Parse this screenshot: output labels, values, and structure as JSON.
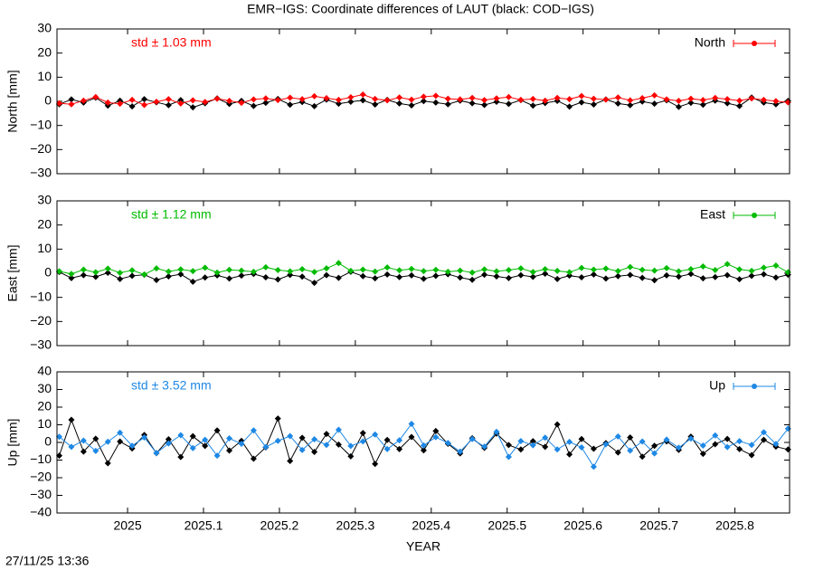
{
  "title": "EMR−IGS: Coordinate differences of LAUT (black: COD−IGS)",
  "footer": "27/11/25 13:36",
  "chart_data": [
    {
      "type": "line",
      "y_label": "North [mm]",
      "annotation": "std ± 1.03 mm",
      "xlim": [
        2024.907,
        2025.872
      ],
      "xticks": [
        2025,
        2025.1,
        2025.2,
        2025.3,
        2025.4,
        2025.5,
        2025.6,
        2025.7,
        2025.8
      ],
      "ylim": [
        -30,
        30
      ],
      "yticks": [
        {
          "value": -30,
          "label": "−30"
        },
        {
          "value": -20,
          "label": "−20"
        },
        {
          "value": -10,
          "label": "−10"
        },
        0,
        10,
        20,
        30
      ],
      "legend": "top-right",
      "x": [
        2024.91,
        2024.926,
        2024.942,
        2024.958,
        2024.974,
        2024.99,
        2025.006,
        2025.022,
        2025.038,
        2025.054,
        2025.07,
        2025.086,
        2025.102,
        2025.118,
        2025.134,
        2025.15,
        2025.166,
        2025.182,
        2025.198,
        2025.214,
        2025.23,
        2025.246,
        2025.262,
        2025.278,
        2025.294,
        2025.31,
        2025.326,
        2025.342,
        2025.358,
        2025.374,
        2025.39,
        2025.406,
        2025.422,
        2025.438,
        2025.454,
        2025.47,
        2025.486,
        2025.502,
        2025.518,
        2025.534,
        2025.55,
        2025.566,
        2025.582,
        2025.598,
        2025.614,
        2025.63,
        2025.646,
        2025.662,
        2025.678,
        2025.694,
        2025.71,
        2025.726,
        2025.742,
        2025.758,
        2025.774,
        2025.79,
        2025.806,
        2025.822,
        2025.838,
        2025.854,
        2025.87
      ],
      "series": [
        {
          "color": "#000000",
          "values": [
            -1.2,
            0.8,
            -0.5,
            1.5,
            -1.8,
            0.3,
            -2.1,
            0.9,
            -0.4,
            -1.6,
            0.5,
            -2.5,
            -0.8,
            1.2,
            -1.1,
            0.2,
            -1.9,
            -0.6,
            1.0,
            -1.4,
            -0.3,
            -2.0,
            0.7,
            -1.0,
            -0.2,
            0.4,
            -1.3,
            0.6,
            -0.9,
            -1.7,
            0.1,
            -0.5,
            -1.2,
            0.3,
            -0.8,
            -1.5,
            -0.2,
            -1.1,
            0.5,
            -1.8,
            -0.7,
            0.2,
            -2.2,
            -0.4,
            -1.3,
            0.8,
            -0.9,
            -1.6,
            -0.1,
            -1.0,
            0.4,
            -2.3,
            -0.6,
            -1.4,
            0.3,
            -0.8,
            -1.9,
            1.6,
            -0.5,
            -1.2,
            0.2
          ]
        },
        {
          "name": "North",
          "color": "#ff0000",
          "values": [
            -0.8,
            -1.2,
            0.3,
            1.8,
            -0.5,
            -1.0,
            0.6,
            -1.5,
            -0.2,
            0.9,
            -0.9,
            0.4,
            -0.3,
            1.1,
            0.2,
            -0.6,
            0.8,
            1.2,
            0.5,
            1.5,
            0.9,
            2.1,
            1.3,
            0.6,
            1.7,
            2.8,
            1.0,
            0.4,
            1.6,
            0.7,
            1.9,
            2.3,
            1.1,
            0.8,
            1.4,
            0.5,
            1.2,
            1.8,
            0.6,
            1.0,
            0.3,
            1.4,
            0.9,
            2.2,
            1.1,
            0.7,
            1.6,
            0.4,
            1.3,
            2.5,
            0.8,
            0.2,
            1.1,
            0.5,
            1.4,
            0.9,
            0.3,
            1.2,
            0.6,
            0.1,
            -0.4
          ]
        }
      ]
    },
    {
      "type": "line",
      "y_label": "East [mm]",
      "annotation": "std ± 1.12 mm",
      "xlim": [
        2024.907,
        2025.872
      ],
      "xticks": [
        2025,
        2025.1,
        2025.2,
        2025.3,
        2025.4,
        2025.5,
        2025.6,
        2025.7,
        2025.8
      ],
      "ylim": [
        -30,
        30
      ],
      "yticks": [
        {
          "value": -30,
          "label": "−30"
        },
        {
          "value": -20,
          "label": "−20"
        },
        {
          "value": -10,
          "label": "−10"
        },
        0,
        10,
        20,
        30
      ],
      "legend": "top-right",
      "x": [
        2024.91,
        2024.926,
        2024.942,
        2024.958,
        2024.974,
        2024.99,
        2025.006,
        2025.022,
        2025.038,
        2025.054,
        2025.07,
        2025.086,
        2025.102,
        2025.118,
        2025.134,
        2025.15,
        2025.166,
        2025.182,
        2025.198,
        2025.214,
        2025.23,
        2025.246,
        2025.262,
        2025.278,
        2025.294,
        2025.31,
        2025.326,
        2025.342,
        2025.358,
        2025.374,
        2025.39,
        2025.406,
        2025.422,
        2025.438,
        2025.454,
        2025.47,
        2025.486,
        2025.502,
        2025.518,
        2025.534,
        2025.55,
        2025.566,
        2025.582,
        2025.598,
        2025.614,
        2025.63,
        2025.646,
        2025.662,
        2025.678,
        2025.694,
        2025.71,
        2025.726,
        2025.742,
        2025.758,
        2025.774,
        2025.79,
        2025.806,
        2025.822,
        2025.838,
        2025.854,
        2025.87
      ],
      "series": [
        {
          "color": "#000000",
          "values": [
            0.5,
            -2.0,
            -0.8,
            -1.5,
            0.2,
            -2.4,
            -1.1,
            -0.6,
            -2.8,
            -1.3,
            -0.4,
            -3.5,
            -1.8,
            -0.9,
            -2.2,
            -1.0,
            -0.3,
            -1.7,
            -2.6,
            -0.7,
            -1.4,
            -4.0,
            -0.8,
            -1.9,
            0.6,
            -1.2,
            -2.1,
            -0.5,
            -1.6,
            -0.9,
            -2.3,
            -1.1,
            -0.4,
            -1.8,
            -2.7,
            -0.6,
            -1.3,
            -2.0,
            -0.8,
            -1.5,
            -0.2,
            -2.4,
            -1.0,
            -1.7,
            -0.5,
            -2.2,
            -1.2,
            -0.7,
            -1.9,
            -2.9,
            -0.9,
            -1.4,
            -0.3,
            -2.1,
            -1.6,
            -0.8,
            -2.5,
            -1.1,
            -0.4,
            -1.8,
            -0.6
          ]
        },
        {
          "name": "East",
          "color": "#00bb00",
          "values": [
            0.8,
            -0.3,
            1.5,
            0.4,
            1.9,
            0.2,
            1.2,
            -0.5,
            2.0,
            0.7,
            1.6,
            0.9,
            2.3,
            0.3,
            1.4,
            1.1,
            0.6,
            2.5,
            1.3,
            0.8,
            1.7,
            0.5,
            2.0,
            4.2,
            1.0,
            1.5,
            0.7,
            2.4,
            1.2,
            1.8,
            0.9,
            1.4,
            0.6,
            1.1,
            0.3,
            1.6,
            0.8,
            1.3,
            2.0,
            0.5,
            1.7,
            1.0,
            0.4,
            2.2,
            1.5,
            1.9,
            0.9,
            2.6,
            1.4,
            1.1,
            2.1,
            0.8,
            1.7,
            2.8,
            1.3,
            3.8,
            1.6,
            1.0,
            2.3,
            3.2,
            0.4
          ]
        }
      ]
    },
    {
      "type": "line",
      "y_label": "Up [mm]",
      "x_label": "YEAR",
      "annotation": "std ± 3.52 mm",
      "xlim": [
        2024.907,
        2025.872
      ],
      "xticks": [
        2025,
        2025.1,
        2025.2,
        2025.3,
        2025.4,
        2025.5,
        2025.6,
        2025.7,
        2025.8
      ],
      "ylim": [
        -40,
        40
      ],
      "yticks": [
        {
          "value": -40,
          "label": "−40"
        },
        {
          "value": -30,
          "label": "−30"
        },
        {
          "value": -20,
          "label": "−20"
        },
        {
          "value": -10,
          "label": "−10"
        },
        0,
        10,
        20,
        30,
        40
      ],
      "legend": "top-right",
      "x": [
        2024.91,
        2024.926,
        2024.942,
        2024.958,
        2024.974,
        2024.99,
        2025.006,
        2025.022,
        2025.038,
        2025.054,
        2025.07,
        2025.086,
        2025.102,
        2025.118,
        2025.134,
        2025.15,
        2025.166,
        2025.182,
        2025.198,
        2025.214,
        2025.23,
        2025.246,
        2025.262,
        2025.278,
        2025.294,
        2025.31,
        2025.326,
        2025.342,
        2025.358,
        2025.374,
        2025.39,
        2025.406,
        2025.422,
        2025.438,
        2025.454,
        2025.47,
        2025.486,
        2025.502,
        2025.518,
        2025.534,
        2025.55,
        2025.566,
        2025.582,
        2025.598,
        2025.614,
        2025.63,
        2025.646,
        2025.662,
        2025.678,
        2025.694,
        2025.71,
        2025.726,
        2025.742,
        2025.758,
        2025.774,
        2025.79,
        2025.806,
        2025.822,
        2025.838,
        2025.854,
        2025.87
      ],
      "series": [
        {
          "color": "#000000",
          "values": [
            -7.5,
            12.8,
            -5.2,
            2.1,
            -11.8,
            0.5,
            -3.4,
            4.2,
            -6.1,
            1.8,
            -8.3,
            3.5,
            -2.0,
            6.8,
            -4.6,
            0.9,
            -9.2,
            -2.8,
            13.5,
            -10.5,
            2.6,
            -5.4,
            4.8,
            -1.2,
            -7.9,
            5.3,
            -12.2,
            1.4,
            -3.8,
            3.1,
            -4.5,
            6.5,
            -0.8,
            -6.2,
            2.4,
            -3.1,
            5.0,
            -1.5,
            -4.0,
            0.7,
            -2.5,
            10.2,
            -6.8,
            1.9,
            -3.6,
            -0.4,
            -5.7,
            2.8,
            -8.1,
            -1.9,
            0.6,
            -4.2,
            3.3,
            -6.5,
            -1.0,
            2.0,
            -3.8,
            -7.2,
            1.5,
            -2.4,
            -4.0
          ]
        },
        {
          "name": "Up",
          "color": "#1e88e5",
          "values": [
            3.2,
            -2.5,
            1.0,
            -4.8,
            0.4,
            5.5,
            -1.9,
            2.8,
            -6.0,
            -0.6,
            4.1,
            -3.2,
            1.5,
            -7.5,
            2.3,
            -0.8,
            6.8,
            -2.6,
            0.9,
            3.6,
            -4.3,
            1.8,
            -1.4,
            7.2,
            -2.0,
            0.6,
            4.5,
            -3.8,
            1.2,
            10.5,
            -1.7,
            3.0,
            -0.3,
            -5.2,
            1.9,
            -2.4,
            6.0,
            -8.2,
            0.8,
            -1.6,
            2.7,
            -4.0,
            0.3,
            -2.8,
            -13.8,
            -1.1,
            3.4,
            -4.6,
            0.5,
            -6.2,
            1.6,
            -3.0,
            2.2,
            -1.8,
            4.0,
            -2.6,
            0.7,
            -1.4,
            5.8,
            -0.9,
            7.8
          ]
        }
      ]
    }
  ]
}
